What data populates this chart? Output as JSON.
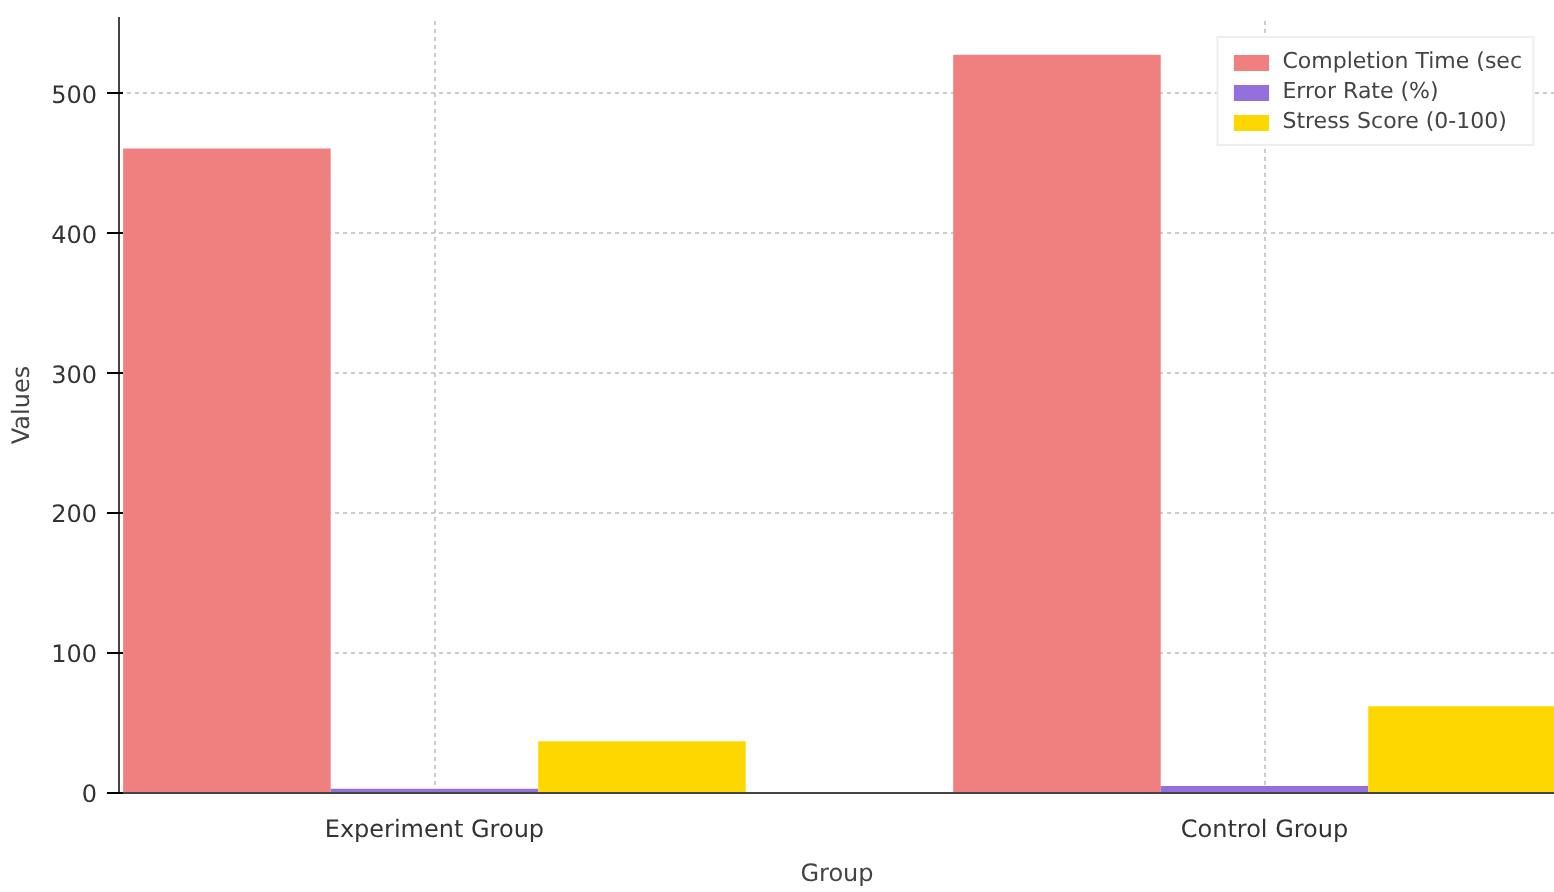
{
  "chart_data": {
    "type": "bar",
    "xlabel": "Group",
    "ylabel": "Values",
    "categories": [
      "Experiment Group",
      "Control Group"
    ],
    "series": [
      {
        "name": "Completion Time (sec",
        "color": "#f08080",
        "values": [
          461,
          528
        ]
      },
      {
        "name": "Error Rate (%)",
        "color": "#9370db",
        "values": [
          3,
          5
        ]
      },
      {
        "name": "Stress Score (0-100)",
        "color": "#ffd700",
        "values": [
          37,
          62
        ]
      }
    ],
    "ylim": [
      0,
      555
    ],
    "yticks": [
      0,
      100,
      200,
      300,
      400,
      500
    ],
    "grid": true,
    "legend": "top right"
  }
}
